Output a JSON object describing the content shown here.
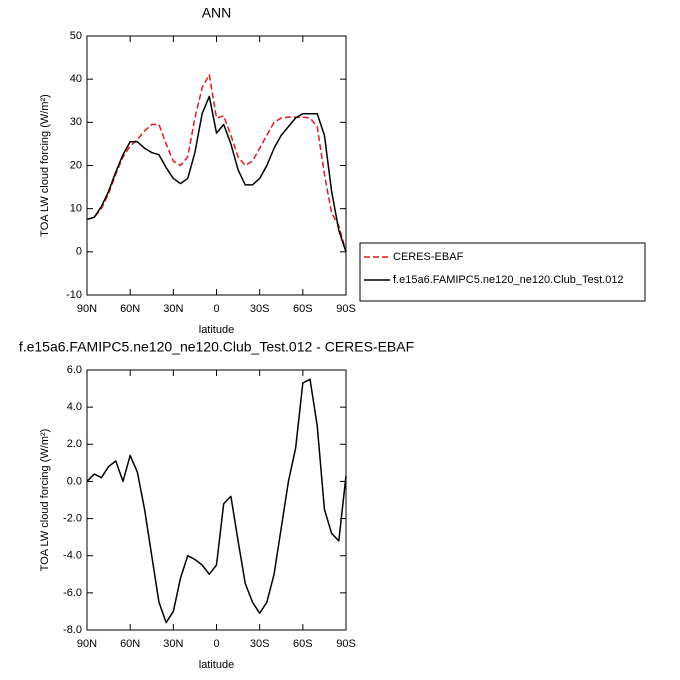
{
  "chart_data": [
    {
      "type": "line",
      "title": "ANN",
      "x_label": "latitude",
      "y_label": "TOA LW cloud forcing (W/m²)",
      "x": [
        90,
        85,
        80,
        75,
        70,
        65,
        60,
        55,
        50,
        45,
        40,
        35,
        30,
        25,
        20,
        15,
        10,
        5,
        0,
        -5,
        -10,
        -15,
        -20,
        -25,
        -30,
        -35,
        -40,
        -45,
        -50,
        -55,
        -60,
        -65,
        -70,
        -75,
        -80,
        -85,
        -90
      ],
      "series": [
        {
          "name": "CERES-EBAF",
          "color": "#e41a1c",
          "dashed": true,
          "values": [
            7.5,
            8,
            10,
            13.5,
            18,
            22,
            24.5,
            26,
            28,
            29.5,
            29.5,
            25,
            21,
            20,
            22,
            31,
            38,
            41,
            31,
            31.5,
            27,
            22,
            20,
            21,
            24,
            27,
            30,
            31,
            31.2,
            31.2,
            31.2,
            31,
            29,
            18,
            9,
            6,
            0
          ]
        },
        {
          "name": "f.e15a6.FAMIPC5.ne120_ne120.Club_Test.012",
          "color": "#000000",
          "dashed": false,
          "values": [
            7.5,
            8,
            10.5,
            14,
            18.5,
            22.5,
            25.5,
            25.5,
            24,
            23,
            22.5,
            19.5,
            17,
            15.8,
            17,
            23,
            32,
            36,
            27.5,
            29.5,
            25,
            19,
            15.5,
            15.5,
            17,
            20,
            24,
            27,
            29,
            31,
            32,
            32,
            32,
            27,
            14,
            5,
            0
          ]
        }
      ],
      "xlim": [
        90,
        -90
      ],
      "xticks": [
        {
          "value": 90,
          "label": "90N"
        },
        {
          "value": 60,
          "label": "60N"
        },
        {
          "value": 30,
          "label": "30N"
        },
        0,
        {
          "value": -30,
          "label": "30S"
        },
        {
          "value": -60,
          "label": "60S"
        },
        {
          "value": -90,
          "label": "90S"
        }
      ],
      "ylim": [
        -10,
        50
      ],
      "yticks": [
        -10,
        0,
        10,
        20,
        30,
        40,
        50
      ],
      "legend": "right"
    },
    {
      "type": "line",
      "title": "f.e15a6.FAMIPC5.ne120_ne120.Club_Test.012 - CERES-EBAF",
      "x_label": "latitude",
      "y_label": "TOA LW cloud forcing (W/m²)",
      "x": [
        90,
        85,
        80,
        75,
        70,
        65,
        60,
        55,
        50,
        45,
        40,
        35,
        30,
        25,
        20,
        15,
        10,
        5,
        0,
        -5,
        -10,
        -15,
        -20,
        -25,
        -30,
        -35,
        -40,
        -45,
        -50,
        -55,
        -60,
        -65,
        -70,
        -75,
        -80,
        -85,
        -90
      ],
      "series": [
        {
          "color": "#000000",
          "dashed": false,
          "values": [
            0,
            0.4,
            0.2,
            0.8,
            1.1,
            0,
            1.4,
            0.5,
            -1.5,
            -4,
            -6.5,
            -7.6,
            -7,
            -5.2,
            -4,
            -4.2,
            -4.5,
            -5,
            -4.5,
            -1.2,
            -0.8,
            -3.2,
            -5.5,
            -6.5,
            -7.1,
            -6.5,
            -5,
            -2.5,
            0,
            1.8,
            5.3,
            5.5,
            3,
            -1.5,
            -2.8,
            -3.2,
            0.3
          ]
        }
      ],
      "xlim": [
        90,
        -90
      ],
      "xticks": [
        {
          "value": 90,
          "label": "90N"
        },
        {
          "value": 60,
          "label": "60N"
        },
        {
          "value": 30,
          "label": "30N"
        },
        0,
        {
          "value": -30,
          "label": "30S"
        },
        {
          "value": -60,
          "label": "60S"
        },
        {
          "value": -90,
          "label": "90S"
        }
      ],
      "ylim": [
        -8,
        6
      ],
      "yticks": [
        {
          "value": -8,
          "label": "-8.0"
        },
        {
          "value": -6,
          "label": "-6.0"
        },
        {
          "value": -4,
          "label": "-4.0"
        },
        {
          "value": -2,
          "label": "-2.0"
        },
        {
          "value": 0,
          "label": "0.0"
        },
        {
          "value": 2,
          "label": "2.0"
        },
        {
          "value": 4,
          "label": "4.0"
        },
        {
          "value": 6,
          "label": "6.0"
        }
      ]
    }
  ]
}
